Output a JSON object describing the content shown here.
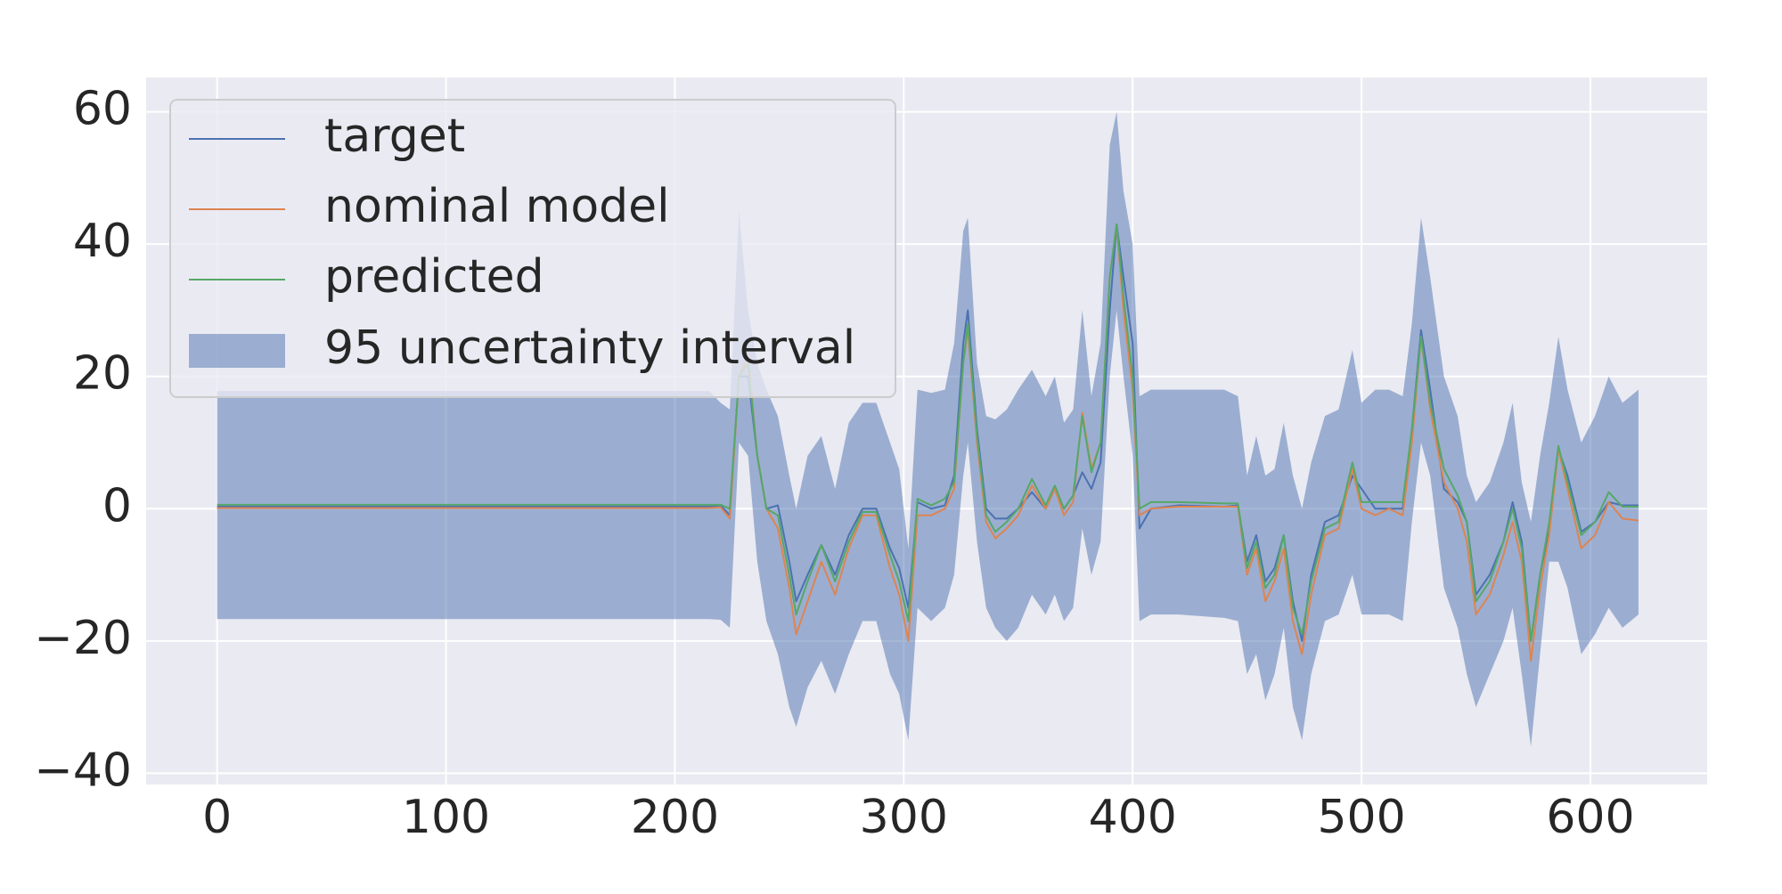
{
  "chart_data": {
    "type": "line",
    "x": [
      0,
      215,
      220,
      224,
      228,
      232,
      236,
      240,
      245,
      250,
      253,
      258,
      264,
      270,
      276,
      282,
      288,
      294,
      298,
      302,
      306,
      312,
      318,
      322,
      326,
      328,
      332,
      336,
      340,
      345,
      350,
      356,
      362,
      366,
      370,
      374,
      378,
      382,
      386,
      390,
      393,
      396,
      400,
      403,
      408,
      420,
      440,
      446,
      450,
      454,
      458,
      462,
      466,
      470,
      474,
      478,
      484,
      490,
      496,
      500,
      506,
      512,
      518,
      522,
      526,
      530,
      536,
      542,
      546,
      550,
      556,
      562,
      566,
      570,
      574,
      578,
      582,
      586,
      590,
      596,
      602,
      608,
      614,
      621
    ],
    "series": [
      {
        "name": "target",
        "color": "#4c72b0",
        "values": [
          0.3,
          0.3,
          0.5,
          -1,
          20,
          20,
          8,
          0,
          0.5,
          -8,
          -14,
          -10,
          -5.5,
          -10,
          -4,
          0,
          0,
          -6,
          -9,
          -15,
          1,
          0,
          0.5,
          5,
          25,
          30,
          12,
          0,
          -1.5,
          -1.5,
          0,
          2.5,
          0,
          3,
          0,
          2,
          5.5,
          3,
          7,
          30,
          43,
          35,
          25,
          -3,
          0,
          0.5,
          0.3,
          0.5,
          -8,
          -4,
          -11,
          -9,
          -4,
          -14,
          -20,
          -10,
          -2,
          -1,
          5,
          3,
          0,
          0,
          0,
          12,
          27,
          18,
          3,
          1,
          -2,
          -13,
          -10,
          -5,
          1,
          -5,
          -20,
          -10,
          -3,
          9,
          5,
          -3.5,
          -2,
          1,
          0.5,
          0.5
        ]
      },
      {
        "name": "nominal model",
        "color": "#dd8452",
        "values": [
          0.1,
          0.1,
          0.2,
          -1.5,
          20,
          23,
          8,
          0,
          -3,
          -12,
          -19,
          -14,
          -8,
          -13,
          -6,
          -1,
          -1,
          -9,
          -13,
          -20,
          -1,
          -1,
          0,
          3,
          22,
          27,
          10,
          -2,
          -4.5,
          -3,
          -1,
          3.5,
          0,
          3,
          -1,
          1,
          14.5,
          6,
          10,
          35,
          43,
          30,
          18,
          -1,
          0,
          0.3,
          0.3,
          0.3,
          -10,
          -6,
          -14,
          -11,
          -6,
          -17,
          -22,
          -13,
          -4,
          -3,
          6,
          0,
          -1,
          0,
          -1,
          10,
          26,
          15,
          4,
          0,
          -5,
          -16,
          -13,
          -7,
          -2,
          -8,
          -23,
          -12,
          -4,
          9,
          3,
          -6,
          -4,
          1,
          -1.5,
          -1.8
        ]
      },
      {
        "name": "predicted",
        "color": "#55a868",
        "values": [
          0.6,
          0.6,
          0.6,
          0,
          20,
          22,
          8,
          0,
          -1,
          -10,
          -16,
          -11,
          -5.5,
          -11,
          -5,
          -0.5,
          -0.5,
          -7,
          -11,
          -17,
          1.5,
          0.5,
          1.5,
          4,
          22,
          28,
          11,
          -1,
          -3.5,
          -2,
          0,
          4.5,
          0.5,
          3.5,
          0,
          2,
          14,
          5.5,
          10,
          35,
          43,
          32,
          20,
          0,
          1,
          1,
          0.8,
          0.8,
          -9,
          -5,
          -12,
          -10,
          -4,
          -15,
          -19,
          -11,
          -3,
          -2,
          7,
          1,
          1,
          1,
          1,
          12,
          26,
          16,
          6,
          2,
          -2,
          -14,
          -11,
          -5,
          0,
          -6,
          -20,
          -10,
          -2,
          9.5,
          4,
          -4,
          -2,
          2.5,
          0.3,
          0.3
        ]
      }
    ],
    "band": {
      "name": "95 uncertainty interval",
      "color": "#4c72b0",
      "upper": [
        17.8,
        17.8,
        16,
        15,
        45,
        30,
        22,
        18,
        14,
        5,
        0,
        8,
        11,
        3,
        13,
        16,
        16,
        10,
        6,
        -6,
        18,
        17.5,
        18,
        25,
        42,
        44,
        22,
        14,
        13.5,
        15,
        18,
        21,
        17,
        20,
        13,
        15,
        30,
        17,
        25,
        55,
        60,
        48,
        40,
        17,
        18,
        18,
        18,
        17,
        5,
        11,
        5,
        6,
        13,
        5,
        0,
        7,
        14,
        15,
        24,
        16,
        18,
        18,
        17,
        28,
        44,
        35,
        20,
        14,
        5,
        1,
        4,
        10,
        16,
        4,
        -2,
        8,
        16,
        26,
        18,
        10,
        14,
        20,
        16,
        18
      ],
      "lower": [
        -16.7,
        -16.7,
        -16.8,
        -18,
        10,
        8,
        -8,
        -17,
        -22,
        -30,
        -33,
        -27,
        -23,
        -28,
        -22,
        -17,
        -17,
        -25,
        -28,
        -35,
        -15,
        -17,
        -15,
        -10,
        5,
        10,
        -5,
        -15,
        -18,
        -20,
        -18,
        -13,
        -16,
        -13,
        -17,
        -15,
        -3,
        -10,
        -5,
        20,
        30,
        20,
        8,
        -17,
        -16,
        -16,
        -16.5,
        -17,
        -25,
        -22,
        -29,
        -25,
        -18,
        -30,
        -35,
        -25,
        -17,
        -16,
        -10,
        -16,
        -16,
        -16,
        -17,
        -2,
        10,
        5,
        -12,
        -18,
        -25,
        -30,
        -25,
        -20,
        -15,
        -25,
        -36,
        -22,
        -8,
        -8,
        -12,
        -22,
        -19,
        -15,
        -18,
        -16
      ]
    },
    "xlim": [
      -31,
      651
    ],
    "ylim": [
      -41.7,
      65.2
    ],
    "xticks": [
      0,
      100,
      200,
      300,
      400,
      500,
      600
    ],
    "yticks": [
      {
        "value": -40,
        "label": "−40"
      },
      {
        "value": -20,
        "label": "−20"
      },
      0,
      20,
      40,
      60
    ],
    "grid": true,
    "legend": "upper left"
  }
}
